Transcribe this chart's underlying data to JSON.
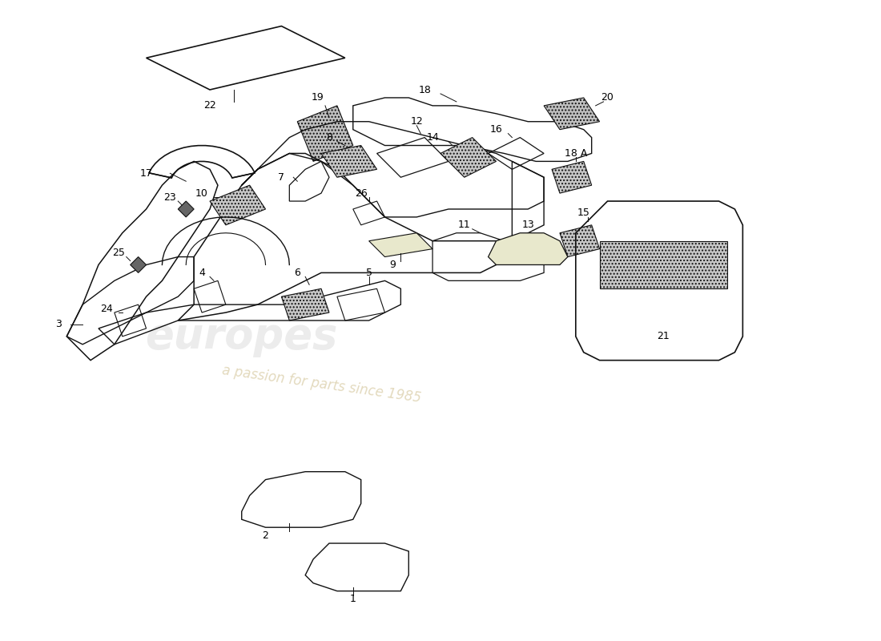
{
  "background_color": "#ffffff",
  "line_color": "#111111",
  "hatch_color": "#aaaaaa",
  "label_fontsize": 9,
  "watermark1": "europes",
  "watermark2": "a passion for parts since 1985",
  "figw": 11.0,
  "figh": 8.0
}
